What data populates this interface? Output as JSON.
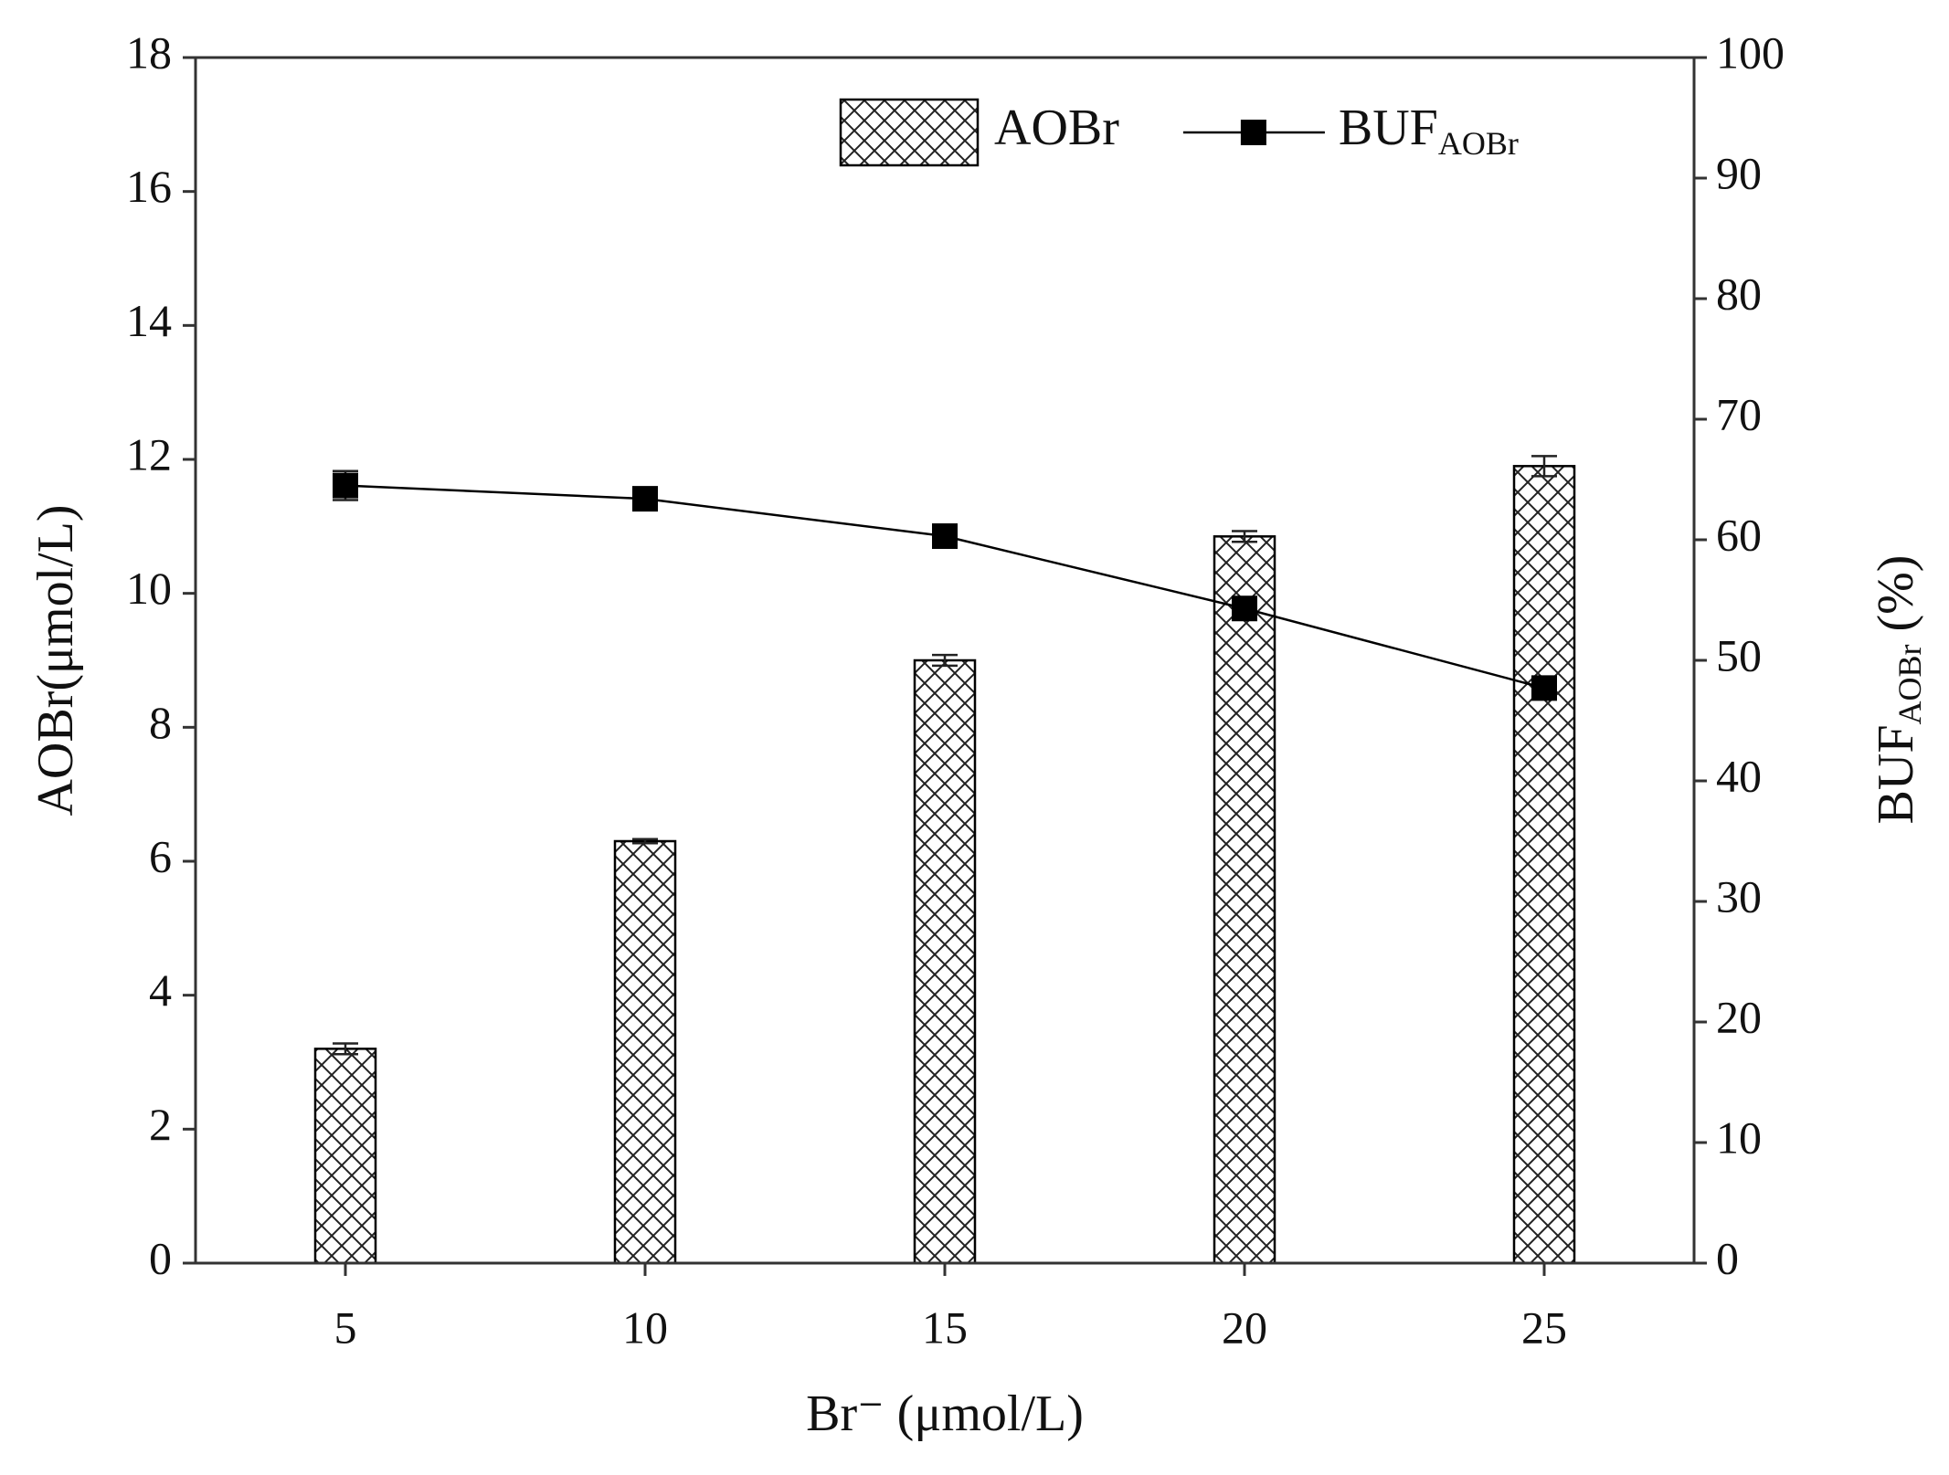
{
  "chart_data": {
    "type": "bar",
    "xlabel": "Br⁻ (μmol/L)",
    "ylabel": "AOBr(μmol/L)",
    "y2label": {
      "text": "BUF",
      "subscript": "AOBr",
      "suffix": " (%)"
    },
    "categories": [
      "5",
      "10",
      "15",
      "20",
      "25"
    ],
    "series": [
      {
        "name": "AOBr",
        "type": "bar",
        "color": "#000000",
        "hatch": "crosshatch",
        "values": [
          3.2,
          6.3,
          9.0,
          10.85,
          11.9
        ],
        "errors": [
          0.08,
          0.03,
          0.08,
          0.08,
          0.15
        ]
      },
      {
        "name": "BUF",
        "name_subscript": "AOBr",
        "type": "line",
        "axis": "y2",
        "color": "#000000",
        "marker": "square",
        "values": [
          64.5,
          63.4,
          60.3,
          54.3,
          47.7
        ],
        "errors": [
          1.2,
          0.5,
          0.6,
          0.6,
          0.6
        ]
      }
    ],
    "ylim": [
      0,
      18
    ],
    "yticks": [
      0,
      2,
      4,
      6,
      8,
      10,
      12,
      14,
      16,
      18
    ],
    "y2lim": [
      0,
      100
    ],
    "y2ticks": [
      0,
      10,
      20,
      30,
      40,
      50,
      60,
      70,
      80,
      90,
      100
    ],
    "legend": "top-right",
    "grid": false
  }
}
